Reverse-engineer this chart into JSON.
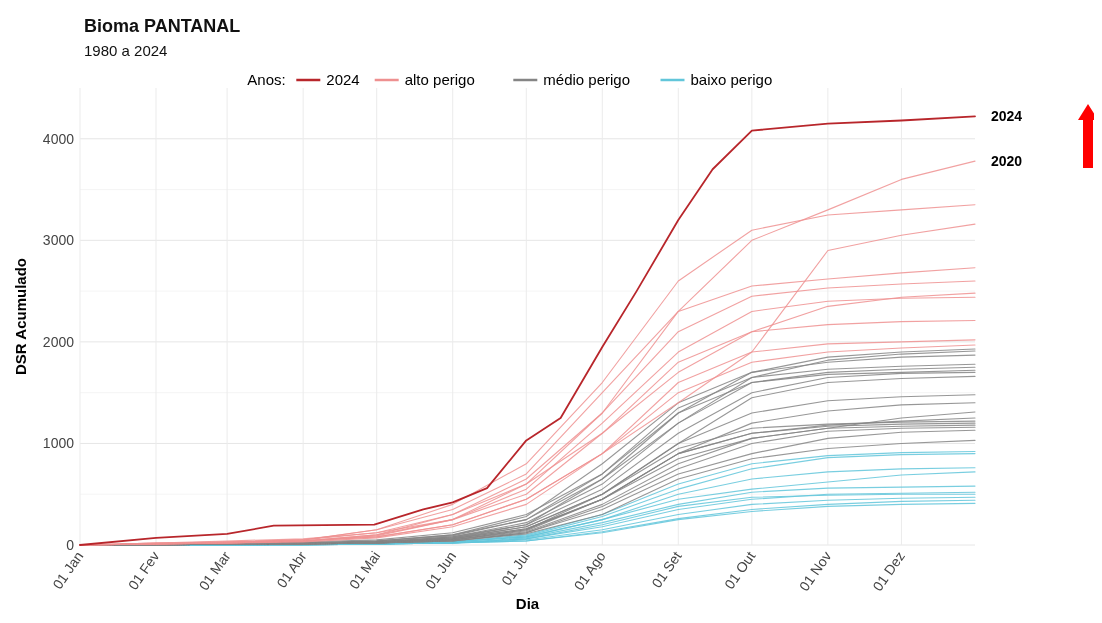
{
  "chart_data": {
    "type": "line",
    "title": "Bioma PANTANAL",
    "subtitle": "1980 a 2024",
    "xlabel": "Dia",
    "ylabel": "DSR Acumulado",
    "legend_title": "Anos:",
    "legend": "top",
    "grid": true,
    "xlim": [
      "--01-01",
      "--12-31"
    ],
    "xticks": [
      {
        "value": "--01-01",
        "label": "01 Jan"
      },
      {
        "value": "--02-01",
        "label": "01 Fev"
      },
      {
        "value": "--03-01",
        "label": "01 Mar"
      },
      {
        "value": "--04-01",
        "label": "01 Abr"
      },
      {
        "value": "--05-01",
        "label": "01 Mai"
      },
      {
        "value": "--06-01",
        "label": "01 Jun"
      },
      {
        "value": "--07-01",
        "label": "01 Jul"
      },
      {
        "value": "--08-01",
        "label": "01 Ago"
      },
      {
        "value": "--09-01",
        "label": "01 Set"
      },
      {
        "value": "--10-01",
        "label": "01 Out"
      },
      {
        "value": "--11-01",
        "label": "01 Nov"
      },
      {
        "value": "--12-01",
        "label": "01 Dez"
      }
    ],
    "ylim": [
      0,
      4500
    ],
    "yticks": [
      0,
      1000,
      2000,
      3000,
      4000
    ],
    "annotations": [
      {
        "text": "2024",
        "x": "--12-31",
        "y": 4220
      },
      {
        "text": "2020",
        "x": "--12-31",
        "y": 3780
      }
    ],
    "x": [
      "--01-01",
      "--02-01",
      "--03-01",
      "--04-01",
      "--05-01",
      "--06-01",
      "--07-01",
      "--08-01",
      "--09-01",
      "--10-01",
      "--11-01",
      "--12-01",
      "--12-31"
    ],
    "series": [
      {
        "name": "2024",
        "color": "#b8262b",
        "x": [
          "--01-01",
          "--02-01",
          "--03-01",
          "--03-20",
          "--04-30",
          "--05-20",
          "--06-01",
          "--06-15",
          "--07-01",
          "--07-15",
          "--08-01",
          "--08-15",
          "--09-01",
          "--09-15",
          "--10-01",
          "--11-01",
          "--12-01",
          "--12-31"
        ],
        "values": [
          0,
          70,
          110,
          190,
          200,
          350,
          420,
          560,
          1030,
          1250,
          1950,
          2500,
          3200,
          3700,
          4080,
          4150,
          4180,
          4220
        ]
      },
      {
        "name": "alto perigo",
        "color": "#ee9090",
        "values": [
          0,
          20,
          40,
          60,
          120,
          250,
          600,
          1300,
          2300,
          3000,
          3300,
          3600,
          3780
        ]
      },
      {
        "color": "#ee9090",
        "values": [
          0,
          20,
          30,
          50,
          150,
          400,
          800,
          1600,
          2600,
          3100,
          3250,
          3300,
          3350
        ]
      },
      {
        "color": "#ee9090",
        "values": [
          0,
          10,
          30,
          40,
          80,
          200,
          450,
          900,
          1400,
          1900,
          2900,
          3050,
          3160
        ]
      },
      {
        "color": "#ee9090",
        "values": [
          0,
          20,
          30,
          50,
          150,
          350,
          700,
          1500,
          2300,
          2550,
          2620,
          2680,
          2730
        ]
      },
      {
        "color": "#ee9090",
        "values": [
          0,
          10,
          20,
          40,
          100,
          300,
          650,
          1300,
          2100,
          2450,
          2530,
          2570,
          2600
        ]
      },
      {
        "color": "#ee9090",
        "values": [
          0,
          10,
          30,
          50,
          120,
          300,
          600,
          1100,
          1700,
          2100,
          2350,
          2440,
          2480
        ]
      },
      {
        "color": "#ee9090",
        "values": [
          0,
          10,
          20,
          40,
          100,
          250,
          550,
          1200,
          1900,
          2300,
          2400,
          2430,
          2440
        ]
      },
      {
        "color": "#ee9090",
        "values": [
          0,
          10,
          20,
          40,
          90,
          250,
          500,
          1100,
          1800,
          2100,
          2170,
          2200,
          2210
        ]
      },
      {
        "color": "#ee9090",
        "values": [
          0,
          10,
          20,
          40,
          80,
          200,
          450,
          900,
          1600,
          1900,
          1980,
          2000,
          2020
        ]
      },
      {
        "color": "#ee9090",
        "values": [
          0,
          10,
          20,
          30,
          70,
          180,
          400,
          900,
          1500,
          1800,
          1900,
          1940,
          1970
        ]
      },
      {
        "name": "médio perigo",
        "color": "#858585",
        "values": [
          0,
          10,
          20,
          30,
          50,
          120,
          300,
          700,
          1300,
          1700,
          1850,
          1900,
          1930
        ]
      },
      {
        "color": "#858585",
        "values": [
          0,
          10,
          10,
          20,
          40,
          100,
          250,
          650,
          1200,
          1650,
          1820,
          1880,
          1910
        ]
      },
      {
        "color": "#858585",
        "values": [
          0,
          10,
          10,
          20,
          40,
          100,
          280,
          800,
          1400,
          1700,
          1800,
          1850,
          1870
        ]
      },
      {
        "color": "#858585",
        "values": [
          0,
          10,
          10,
          20,
          40,
          90,
          250,
          700,
          1350,
          1650,
          1730,
          1760,
          1780
        ]
      },
      {
        "color": "#858585",
        "values": [
          0,
          10,
          10,
          20,
          30,
          80,
          220,
          600,
          1200,
          1600,
          1700,
          1730,
          1750
        ]
      },
      {
        "color": "#858585",
        "values": [
          0,
          10,
          10,
          20,
          30,
          80,
          200,
          650,
          1300,
          1600,
          1680,
          1700,
          1720
        ]
      },
      {
        "color": "#858585",
        "values": [
          0,
          10,
          10,
          20,
          30,
          70,
          200,
          550,
          1100,
          1500,
          1650,
          1690,
          1700
        ]
      },
      {
        "color": "#858585",
        "values": [
          0,
          10,
          10,
          20,
          30,
          70,
          180,
          500,
          1000,
          1450,
          1600,
          1640,
          1660
        ]
      },
      {
        "color": "#858585",
        "values": [
          0,
          10,
          10,
          20,
          30,
          60,
          180,
          500,
          1000,
          1300,
          1420,
          1460,
          1480
        ]
      },
      {
        "color": "#858585",
        "values": [
          0,
          0,
          10,
          10,
          30,
          60,
          160,
          450,
          900,
          1200,
          1320,
          1380,
          1400
        ]
      },
      {
        "color": "#858585",
        "values": [
          0,
          0,
          10,
          10,
          30,
          60,
          160,
          450,
          850,
          1050,
          1150,
          1250,
          1310
        ]
      },
      {
        "color": "#858585",
        "values": [
          0,
          0,
          10,
          10,
          20,
          50,
          150,
          450,
          900,
          1100,
          1180,
          1220,
          1250
        ]
      },
      {
        "color": "#858585",
        "values": [
          0,
          0,
          10,
          10,
          20,
          50,
          150,
          500,
          950,
          1150,
          1190,
          1210,
          1220
        ]
      },
      {
        "color": "#858585",
        "values": [
          0,
          0,
          10,
          10,
          20,
          50,
          140,
          450,
          900,
          1100,
          1170,
          1190,
          1200
        ]
      },
      {
        "color": "#858585",
        "values": [
          0,
          0,
          10,
          10,
          20,
          50,
          130,
          400,
          800,
          1050,
          1150,
          1170,
          1180
        ]
      },
      {
        "color": "#858585",
        "values": [
          0,
          0,
          10,
          10,
          20,
          40,
          120,
          380,
          750,
          1000,
          1120,
          1150,
          1160
        ]
      },
      {
        "color": "#858585",
        "values": [
          0,
          0,
          10,
          10,
          20,
          40,
          120,
          350,
          700,
          900,
          1050,
          1110,
          1130
        ]
      },
      {
        "color": "#858585",
        "values": [
          0,
          0,
          10,
          10,
          20,
          40,
          110,
          300,
          650,
          850,
          950,
          1000,
          1030
        ]
      },
      {
        "name": "baixo perigo",
        "color": "#62c6da",
        "values": [
          0,
          0,
          0,
          10,
          10,
          30,
          100,
          300,
          600,
          800,
          880,
          910,
          920
        ]
      },
      {
        "color": "#62c6da",
        "values": [
          0,
          0,
          0,
          10,
          10,
          30,
          90,
          280,
          550,
          750,
          860,
          890,
          900
        ]
      },
      {
        "color": "#62c6da",
        "values": [
          0,
          0,
          0,
          10,
          10,
          30,
          80,
          250,
          500,
          650,
          720,
          750,
          760
        ]
      },
      {
        "color": "#62c6da",
        "values": [
          0,
          0,
          0,
          10,
          10,
          30,
          80,
          250,
          450,
          550,
          620,
          690,
          720
        ]
      },
      {
        "color": "#62c6da",
        "values": [
          0,
          0,
          0,
          10,
          10,
          20,
          70,
          220,
          400,
          520,
          560,
          570,
          580
        ]
      },
      {
        "color": "#62c6da",
        "values": [
          0,
          0,
          0,
          10,
          10,
          20,
          60,
          180,
          350,
          450,
          500,
          510,
          520
        ]
      },
      {
        "color": "#62c6da",
        "values": [
          0,
          0,
          0,
          0,
          10,
          20,
          60,
          200,
          380,
          470,
          490,
          500,
          500
        ]
      },
      {
        "color": "#62c6da",
        "values": [
          0,
          0,
          0,
          0,
          10,
          20,
          50,
          150,
          300,
          400,
          440,
          460,
          470
        ]
      },
      {
        "color": "#62c6da",
        "values": [
          0,
          0,
          0,
          0,
          10,
          20,
          40,
          130,
          260,
          350,
          400,
          430,
          440
        ]
      },
      {
        "color": "#62c6da",
        "values": [
          0,
          0,
          0,
          0,
          10,
          20,
          40,
          120,
          250,
          330,
          380,
          400,
          410
        ]
      }
    ]
  }
}
